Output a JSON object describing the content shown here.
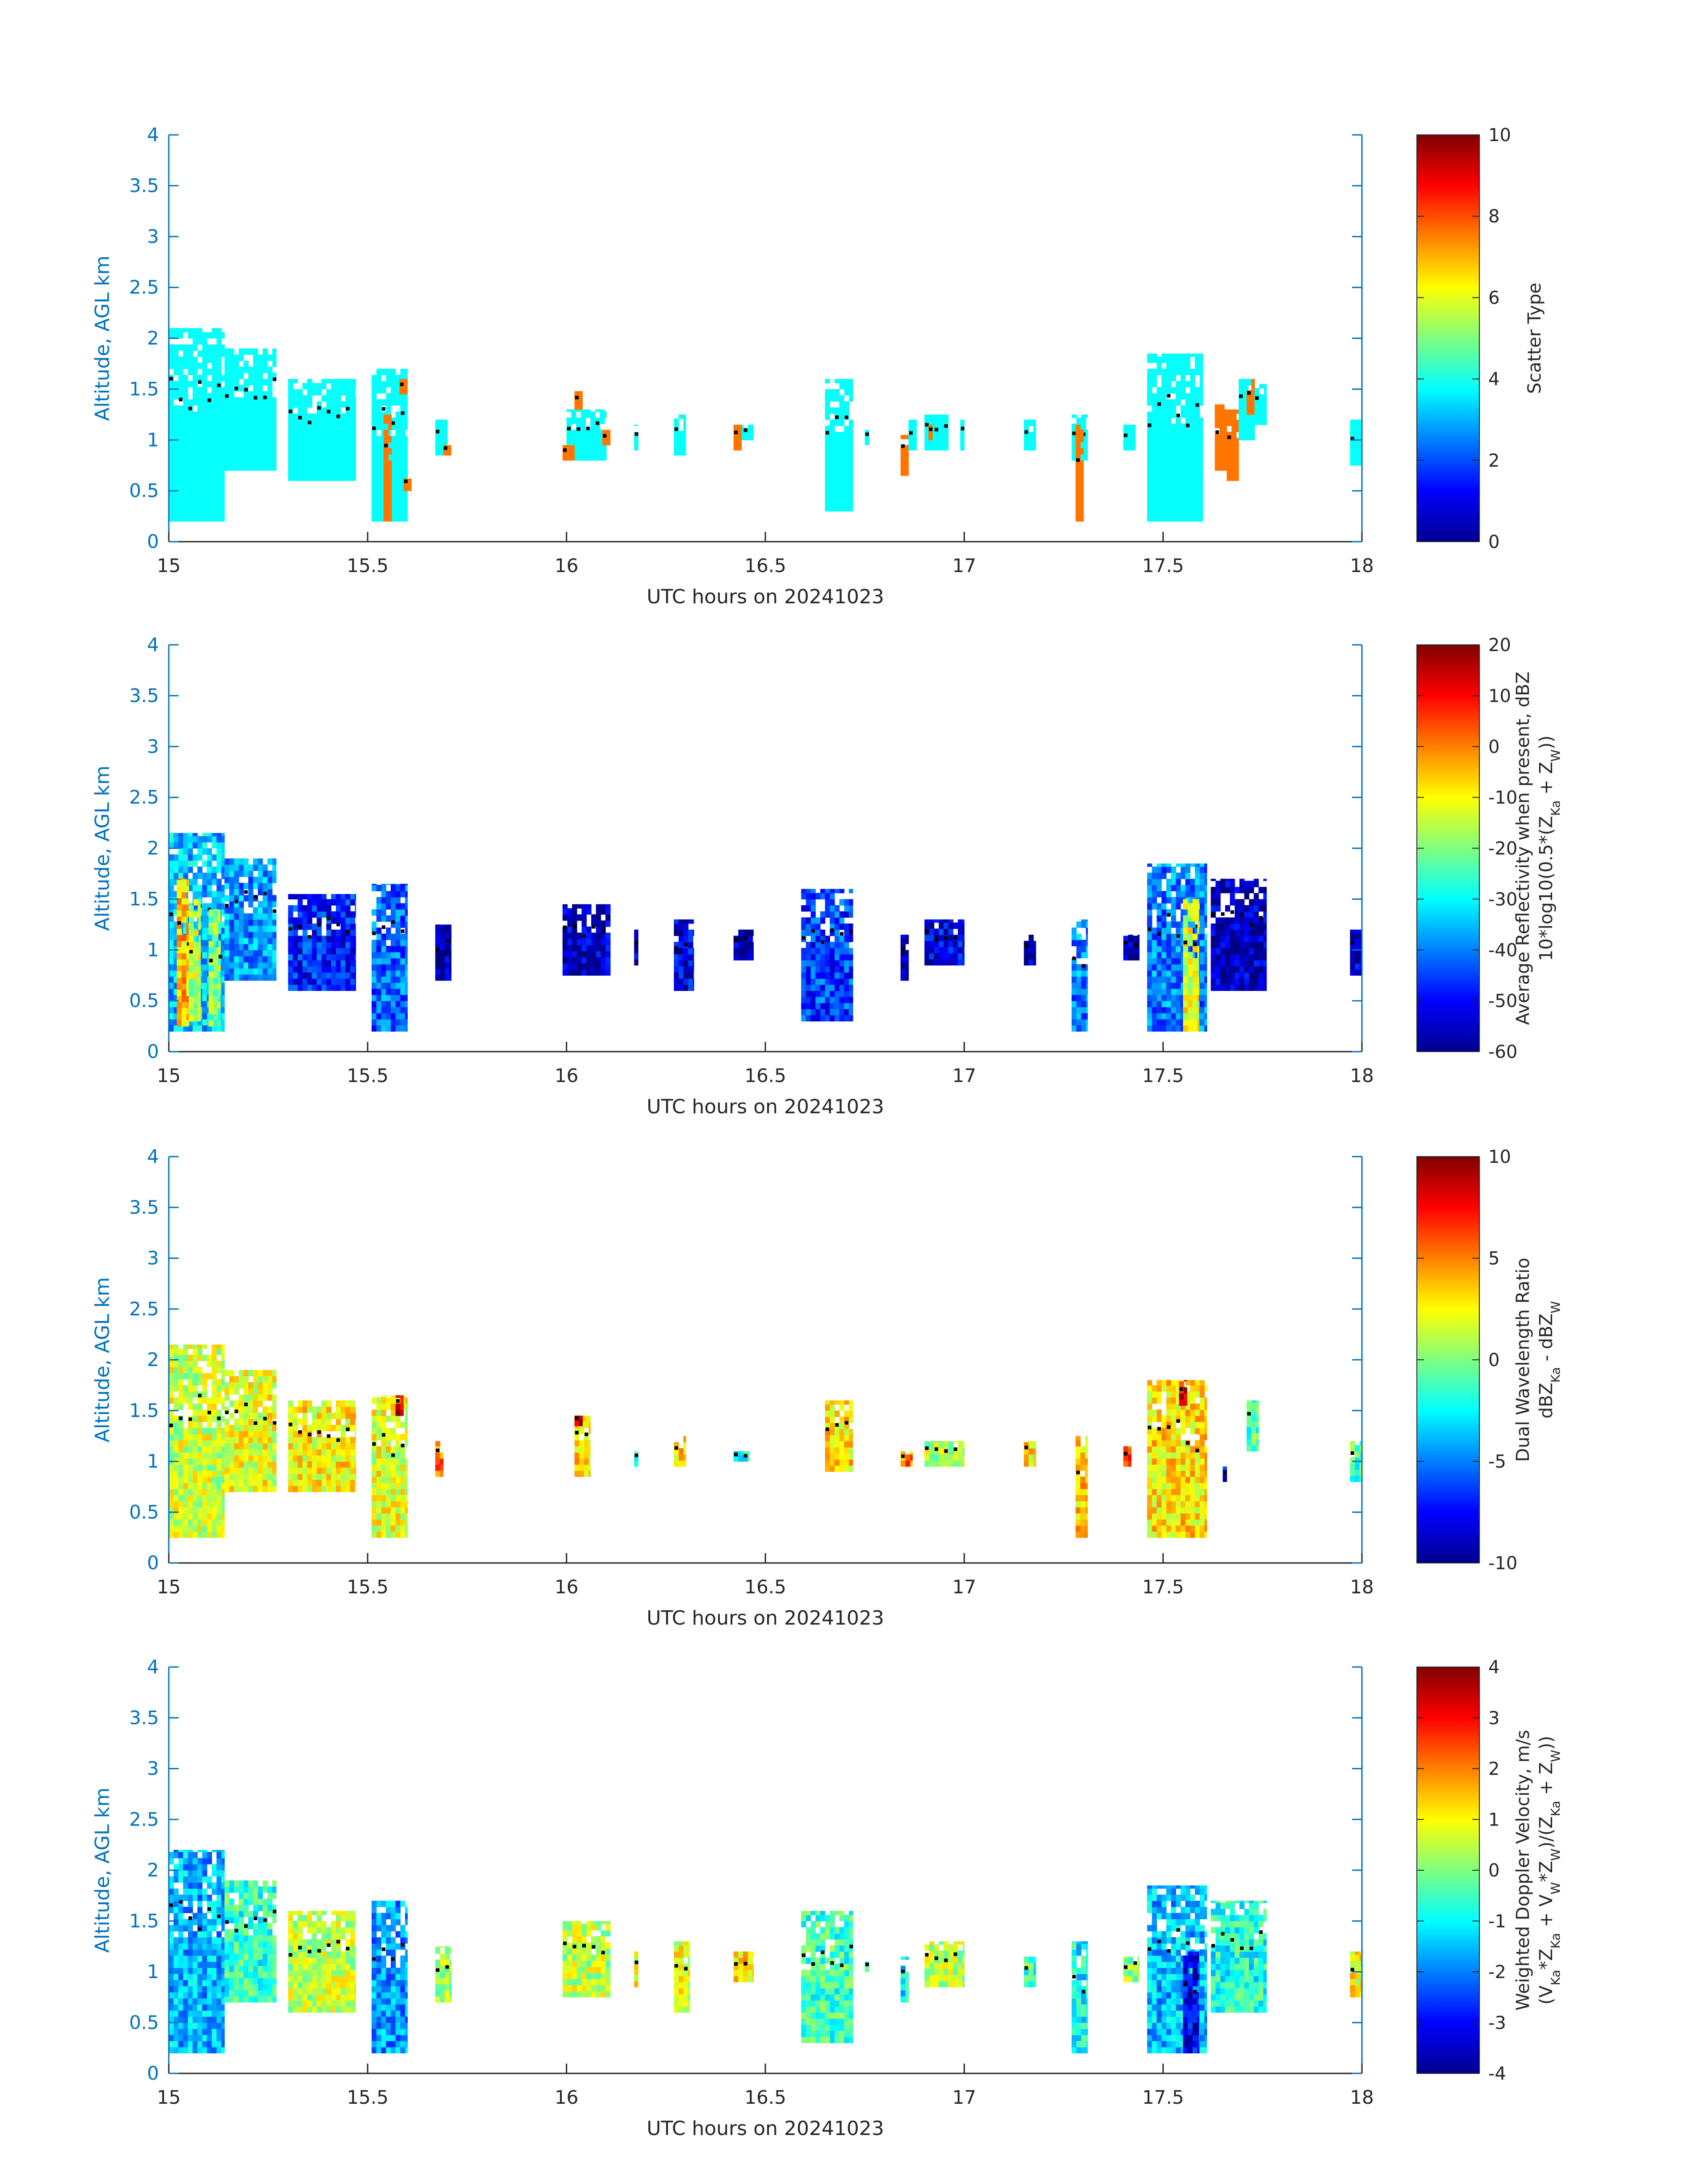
{
  "figure": {
    "xlabel": "UTC hours on 20241023",
    "ylabel": "Altitude, AGL km",
    "x_ticks": [
      "15",
      "15.5",
      "16",
      "16.5",
      "17",
      "17.5",
      "18"
    ],
    "y_ticks": [
      "0",
      "0.5",
      "1",
      "1.5",
      "2",
      "2.5",
      "3",
      "3.5",
      "4"
    ],
    "colors": {
      "axis_blue": "#0072BD",
      "cloud_top_dot": "#000000"
    }
  },
  "chart_data": [
    {
      "type": "heatmap",
      "xlabel": "UTC hours on 20241023",
      "ylabel": "Altitude, AGL km",
      "xlim": [
        15,
        18
      ],
      "ylim": [
        0,
        4
      ],
      "colormap": "jet",
      "colorbar": {
        "label_lines": [
          "Scatter Type"
        ],
        "ticks": [
          "0",
          "2",
          "4",
          "6",
          "8",
          "10"
        ],
        "range": [
          0,
          10
        ]
      },
      "clusters": [
        {
          "x0": 15.0,
          "x1": 15.14,
          "y0": 0.2,
          "y1": 2.1,
          "v": 3.8
        },
        {
          "x0": 15.14,
          "x1": 15.27,
          "y0": 0.7,
          "y1": 1.9,
          "v": 3.8
        },
        {
          "x0": 15.3,
          "x1": 15.47,
          "y0": 0.6,
          "y1": 1.6,
          "v": 3.8
        },
        {
          "x0": 15.51,
          "x1": 15.6,
          "y0": 0.2,
          "y1": 1.7,
          "v": 3.8
        },
        {
          "x0": 15.54,
          "x1": 15.56,
          "y0": 0.2,
          "y1": 1.25,
          "v": 7.6
        },
        {
          "x0": 15.58,
          "x1": 15.6,
          "y0": 1.45,
          "y1": 1.6,
          "v": 7.6
        },
        {
          "x0": 15.59,
          "x1": 15.61,
          "y0": 0.5,
          "y1": 0.65,
          "v": 7.6
        },
        {
          "x0": 15.67,
          "x1": 15.7,
          "y0": 0.85,
          "y1": 1.2,
          "v": 3.8
        },
        {
          "x0": 15.69,
          "x1": 15.71,
          "y0": 0.85,
          "y1": 0.95,
          "v": 7.6
        },
        {
          "x0": 16.0,
          "x1": 16.1,
          "y0": 0.8,
          "y1": 1.3,
          "v": 3.8
        },
        {
          "x0": 15.99,
          "x1": 16.02,
          "y0": 0.8,
          "y1": 0.95,
          "v": 7.6
        },
        {
          "x0": 16.02,
          "x1": 16.04,
          "y0": 1.3,
          "y1": 1.48,
          "v": 7.6
        },
        {
          "x0": 16.09,
          "x1": 16.11,
          "y0": 0.95,
          "y1": 1.1,
          "v": 7.6
        },
        {
          "x0": 16.17,
          "x1": 16.18,
          "y0": 0.9,
          "y1": 1.15,
          "v": 3.8
        },
        {
          "x0": 16.27,
          "x1": 16.3,
          "y0": 0.85,
          "y1": 1.25,
          "v": 3.8
        },
        {
          "x0": 16.42,
          "x1": 16.47,
          "y0": 1.0,
          "y1": 1.15,
          "v": 3.8
        },
        {
          "x0": 16.42,
          "x1": 16.44,
          "y0": 0.9,
          "y1": 1.15,
          "v": 7.6
        },
        {
          "x0": 16.65,
          "x1": 16.72,
          "y0": 0.3,
          "y1": 1.6,
          "v": 3.8
        },
        {
          "x0": 16.75,
          "x1": 16.76,
          "y0": 0.95,
          "y1": 1.1,
          "v": 3.8
        },
        {
          "x0": 16.84,
          "x1": 16.86,
          "y0": 0.65,
          "y1": 1.05,
          "v": 7.6
        },
        {
          "x0": 16.86,
          "x1": 16.88,
          "y0": 0.9,
          "y1": 1.2,
          "v": 3.8
        },
        {
          "x0": 16.9,
          "x1": 16.96,
          "y0": 0.9,
          "y1": 1.25,
          "v": 3.8
        },
        {
          "x0": 16.91,
          "x1": 16.92,
          "y0": 1.0,
          "y1": 1.15,
          "v": 7.6
        },
        {
          "x0": 16.99,
          "x1": 17.0,
          "y0": 0.9,
          "y1": 1.2,
          "v": 3.8
        },
        {
          "x0": 17.15,
          "x1": 17.18,
          "y0": 0.9,
          "y1": 1.2,
          "v": 3.8
        },
        {
          "x0": 17.27,
          "x1": 17.31,
          "y0": 0.8,
          "y1": 1.25,
          "v": 3.8
        },
        {
          "x0": 17.28,
          "x1": 17.3,
          "y0": 0.2,
          "y1": 1.15,
          "v": 7.6
        },
        {
          "x0": 17.4,
          "x1": 17.43,
          "y0": 0.9,
          "y1": 1.15,
          "v": 3.8
        },
        {
          "x0": 17.46,
          "x1": 17.6,
          "y0": 0.2,
          "y1": 1.85,
          "v": 3.8
        },
        {
          "x0": 17.63,
          "x1": 17.66,
          "y0": 0.7,
          "y1": 1.35,
          "v": 7.6
        },
        {
          "x0": 17.66,
          "x1": 17.69,
          "y0": 0.6,
          "y1": 1.3,
          "v": 7.6
        },
        {
          "x0": 17.69,
          "x1": 17.73,
          "y0": 1.0,
          "y1": 1.6,
          "v": 3.8
        },
        {
          "x0": 17.71,
          "x1": 17.73,
          "y0": 1.25,
          "y1": 1.6,
          "v": 7.6
        },
        {
          "x0": 17.73,
          "x1": 17.76,
          "y0": 1.15,
          "y1": 1.55,
          "v": 3.8
        },
        {
          "x0": 17.97,
          "x1": 18.0,
          "y0": 0.75,
          "y1": 1.2,
          "v": 3.8
        }
      ]
    },
    {
      "type": "heatmap",
      "xlabel": "UTC hours on 20241023",
      "ylabel": "Altitude, AGL km",
      "xlim": [
        15,
        18
      ],
      "ylim": [
        0,
        4
      ],
      "colormap": "jet",
      "colorbar": {
        "label_lines": [
          "Average Reflectivity when present, dBZ",
          "10*log10(0.5*(Z_Ka + Z_W))"
        ],
        "ticks": [
          "-60",
          "-50",
          "-40",
          "-30",
          "-20",
          "-10",
          "0",
          "10",
          "20"
        ],
        "range": [
          -60,
          20
        ]
      },
      "clusters": [
        {
          "x0": 15.0,
          "x1": 15.14,
          "y0": 0.2,
          "y1": 2.15,
          "v": -35
        },
        {
          "x0": 15.02,
          "x1": 15.05,
          "y0": 0.25,
          "y1": 1.7,
          "v": -5
        },
        {
          "x0": 15.05,
          "x1": 15.08,
          "y0": 0.3,
          "y1": 1.5,
          "v": -15
        },
        {
          "x0": 15.1,
          "x1": 15.13,
          "y0": 0.25,
          "y1": 1.4,
          "v": -20
        },
        {
          "x0": 15.14,
          "x1": 15.27,
          "y0": 0.7,
          "y1": 1.9,
          "v": -38
        },
        {
          "x0": 15.3,
          "x1": 15.47,
          "y0": 0.6,
          "y1": 1.55,
          "v": -48
        },
        {
          "x0": 15.51,
          "x1": 15.6,
          "y0": 0.2,
          "y1": 1.65,
          "v": -42
        },
        {
          "x0": 15.67,
          "x1": 15.71,
          "y0": 0.7,
          "y1": 1.25,
          "v": -56
        },
        {
          "x0": 15.99,
          "x1": 16.11,
          "y0": 0.75,
          "y1": 1.45,
          "v": -55
        },
        {
          "x0": 16.17,
          "x1": 16.18,
          "y0": 0.85,
          "y1": 1.2,
          "v": -55
        },
        {
          "x0": 16.27,
          "x1": 16.32,
          "y0": 0.6,
          "y1": 1.3,
          "v": -52
        },
        {
          "x0": 16.42,
          "x1": 16.47,
          "y0": 0.9,
          "y1": 1.2,
          "v": -57
        },
        {
          "x0": 16.59,
          "x1": 16.72,
          "y0": 0.3,
          "y1": 1.6,
          "v": -45
        },
        {
          "x0": 16.84,
          "x1": 16.86,
          "y0": 0.7,
          "y1": 1.15,
          "v": -57
        },
        {
          "x0": 16.9,
          "x1": 17.0,
          "y0": 0.85,
          "y1": 1.3,
          "v": -52
        },
        {
          "x0": 17.15,
          "x1": 17.18,
          "y0": 0.85,
          "y1": 1.15,
          "v": -56
        },
        {
          "x0": 17.27,
          "x1": 17.31,
          "y0": 0.2,
          "y1": 1.3,
          "v": -40
        },
        {
          "x0": 17.4,
          "x1": 17.44,
          "y0": 0.9,
          "y1": 1.15,
          "v": -56
        },
        {
          "x0": 17.46,
          "x1": 17.61,
          "y0": 0.2,
          "y1": 1.85,
          "v": -40
        },
        {
          "x0": 17.55,
          "x1": 17.59,
          "y0": 0.2,
          "y1": 1.5,
          "v": -12
        },
        {
          "x0": 17.62,
          "x1": 17.76,
          "y0": 0.6,
          "y1": 1.7,
          "v": -55
        },
        {
          "x0": 17.97,
          "x1": 18.0,
          "y0": 0.75,
          "y1": 1.2,
          "v": -55
        }
      ]
    },
    {
      "type": "heatmap",
      "xlabel": "UTC hours on 20241023",
      "ylabel": "Altitude, AGL km",
      "xlim": [
        15,
        18
      ],
      "ylim": [
        0,
        4
      ],
      "colormap": "jet",
      "colorbar": {
        "label_lines": [
          "Dual Wavelength Ratio",
          "dBZ_Ka - dBZ_W"
        ],
        "ticks": [
          "-10",
          "-5",
          "0",
          "5",
          "10"
        ],
        "range": [
          -10,
          10
        ]
      },
      "clusters": [
        {
          "x0": 15.0,
          "x1": 15.14,
          "y0": 0.25,
          "y1": 2.15,
          "v": 1.5
        },
        {
          "x0": 15.14,
          "x1": 15.27,
          "y0": 0.7,
          "y1": 1.9,
          "v": 2
        },
        {
          "x0": 15.3,
          "x1": 15.47,
          "y0": 0.7,
          "y1": 1.6,
          "v": 2.5
        },
        {
          "x0": 15.51,
          "x1": 15.6,
          "y0": 0.25,
          "y1": 1.65,
          "v": 2
        },
        {
          "x0": 15.57,
          "x1": 15.59,
          "y0": 1.45,
          "y1": 1.65,
          "v": 8.5
        },
        {
          "x0": 15.67,
          "x1": 15.69,
          "y0": 0.85,
          "y1": 1.2,
          "v": 5
        },
        {
          "x0": 16.02,
          "x1": 16.06,
          "y0": 0.85,
          "y1": 1.45,
          "v": 3
        },
        {
          "x0": 16.02,
          "x1": 16.04,
          "y0": 1.35,
          "y1": 1.45,
          "v": 8.5
        },
        {
          "x0": 16.17,
          "x1": 16.18,
          "y0": 0.95,
          "y1": 1.1,
          "v": -2
        },
        {
          "x0": 16.27,
          "x1": 16.3,
          "y0": 0.95,
          "y1": 1.25,
          "v": 3
        },
        {
          "x0": 16.42,
          "x1": 16.46,
          "y0": 1.0,
          "y1": 1.1,
          "v": -2
        },
        {
          "x0": 16.65,
          "x1": 16.72,
          "y0": 0.9,
          "y1": 1.6,
          "v": 3
        },
        {
          "x0": 16.84,
          "x1": 16.87,
          "y0": 0.95,
          "y1": 1.1,
          "v": 5
        },
        {
          "x0": 16.9,
          "x1": 17.0,
          "y0": 0.95,
          "y1": 1.2,
          "v": 1
        },
        {
          "x0": 17.15,
          "x1": 17.18,
          "y0": 0.95,
          "y1": 1.2,
          "v": 3
        },
        {
          "x0": 17.28,
          "x1": 17.31,
          "y0": 0.25,
          "y1": 1.25,
          "v": 3.5
        },
        {
          "x0": 17.4,
          "x1": 17.42,
          "y0": 0.95,
          "y1": 1.15,
          "v": 6
        },
        {
          "x0": 17.46,
          "x1": 17.61,
          "y0": 0.25,
          "y1": 1.8,
          "v": 3
        },
        {
          "x0": 17.54,
          "x1": 17.56,
          "y0": 1.55,
          "y1": 1.8,
          "v": 8
        },
        {
          "x0": 17.65,
          "x1": 17.66,
          "y0": 0.8,
          "y1": 0.95,
          "v": -8
        },
        {
          "x0": 17.71,
          "x1": 17.74,
          "y0": 1.1,
          "y1": 1.6,
          "v": -1
        },
        {
          "x0": 17.97,
          "x1": 18.0,
          "y0": 0.8,
          "y1": 1.2,
          "v": -1
        }
      ]
    },
    {
      "type": "heatmap",
      "xlabel": "UTC hours on 20241023",
      "ylabel": "Altitude, AGL km",
      "xlim": [
        15,
        18
      ],
      "ylim": [
        0,
        4
      ],
      "colormap": "jet",
      "colorbar": {
        "label_lines": [
          "Weighted Doppler Velocity, m/s",
          "(V_Ka*Z_Ka + V_W*Z_W)/(Z_Ka + Z_W))"
        ],
        "ticks": [
          "-4",
          "-3",
          "-2",
          "-1",
          "0",
          "1",
          "2",
          "3",
          "4"
        ],
        "range": [
          -4,
          4
        ]
      },
      "clusters": [
        {
          "x0": 15.0,
          "x1": 15.14,
          "y0": 0.2,
          "y1": 2.2,
          "v": -1.6
        },
        {
          "x0": 15.14,
          "x1": 15.27,
          "y0": 0.7,
          "y1": 1.9,
          "v": -0.6
        },
        {
          "x0": 15.3,
          "x1": 15.47,
          "y0": 0.6,
          "y1": 1.6,
          "v": 0.5
        },
        {
          "x0": 15.51,
          "x1": 15.6,
          "y0": 0.2,
          "y1": 1.7,
          "v": -1.8
        },
        {
          "x0": 15.67,
          "x1": 15.71,
          "y0": 0.7,
          "y1": 1.25,
          "v": 0.3
        },
        {
          "x0": 15.99,
          "x1": 16.11,
          "y0": 0.75,
          "y1": 1.5,
          "v": 0.5
        },
        {
          "x0": 16.17,
          "x1": 16.18,
          "y0": 0.85,
          "y1": 1.2,
          "v": 1
        },
        {
          "x0": 16.27,
          "x1": 16.31,
          "y0": 0.6,
          "y1": 1.3,
          "v": 0.8
        },
        {
          "x0": 16.42,
          "x1": 16.47,
          "y0": 0.9,
          "y1": 1.2,
          "v": 1.2
        },
        {
          "x0": 16.59,
          "x1": 16.72,
          "y0": 0.3,
          "y1": 1.6,
          "v": -0.5
        },
        {
          "x0": 16.75,
          "x1": 16.76,
          "y0": 1.0,
          "y1": 1.1,
          "v": -0.5
        },
        {
          "x0": 16.84,
          "x1": 16.86,
          "y0": 0.7,
          "y1": 1.15,
          "v": -1
        },
        {
          "x0": 16.9,
          "x1": 17.0,
          "y0": 0.85,
          "y1": 1.3,
          "v": 0.5
        },
        {
          "x0": 17.15,
          "x1": 17.18,
          "y0": 0.85,
          "y1": 1.15,
          "v": -0.5
        },
        {
          "x0": 17.27,
          "x1": 17.31,
          "y0": 0.2,
          "y1": 1.3,
          "v": -1
        },
        {
          "x0": 17.4,
          "x1": 17.44,
          "y0": 0.9,
          "y1": 1.15,
          "v": 0
        },
        {
          "x0": 17.46,
          "x1": 17.61,
          "y0": 0.2,
          "y1": 1.85,
          "v": -1.5
        },
        {
          "x0": 17.55,
          "x1": 17.59,
          "y0": 0.2,
          "y1": 1.2,
          "v": -3.2
        },
        {
          "x0": 17.62,
          "x1": 17.76,
          "y0": 0.6,
          "y1": 1.7,
          "v": -0.8
        },
        {
          "x0": 17.97,
          "x1": 18.0,
          "y0": 0.75,
          "y1": 1.2,
          "v": 1
        }
      ]
    }
  ]
}
